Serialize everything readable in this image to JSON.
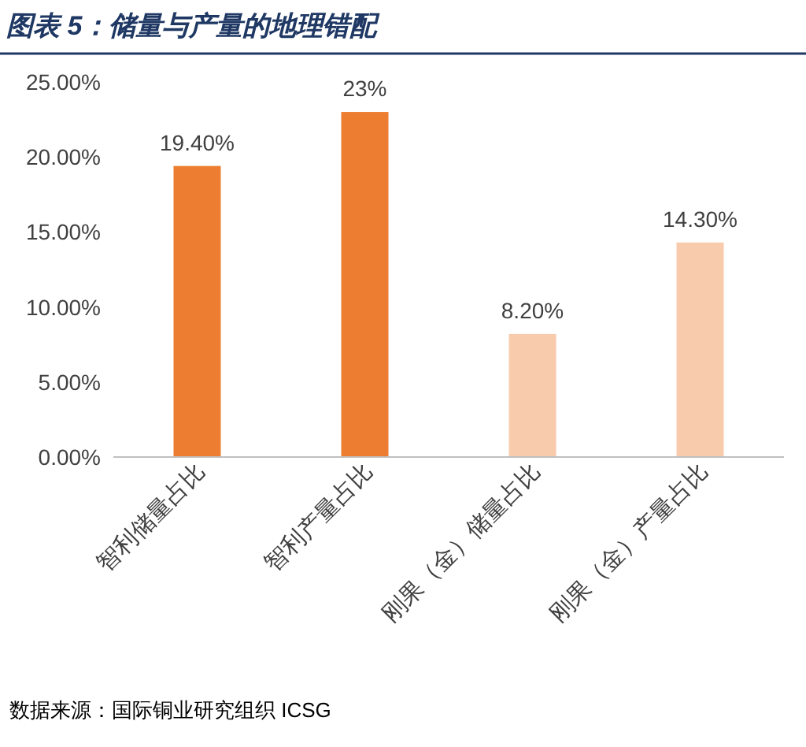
{
  "chart_data": {
    "type": "bar",
    "title": "图表 5：储量与产量的地理错配",
    "categories": [
      "智利储量占比",
      "智利产量占比",
      "刚果（金）储量占比",
      "刚果（金）产量占比"
    ],
    "values": [
      19.4,
      23,
      8.2,
      14.3
    ],
    "value_labels": [
      "19.40%",
      "23%",
      "8.20%",
      "14.30%"
    ],
    "colors": [
      "#ed7d31",
      "#ed7d31",
      "#f8cbad",
      "#f8cbad"
    ],
    "ylim": [
      0,
      25
    ],
    "yticks": [
      {
        "value": 0,
        "label": "0.00%"
      },
      {
        "value": 5,
        "label": "5.00%"
      },
      {
        "value": 10,
        "label": "10.00%"
      },
      {
        "value": 15,
        "label": "15.00%"
      },
      {
        "value": 20,
        "label": "20.00%"
      },
      {
        "value": 25,
        "label": "25.00%"
      }
    ],
    "grid": false,
    "annotations": [
      "数据来源：国际铜业研究组织 ICSG"
    ]
  }
}
